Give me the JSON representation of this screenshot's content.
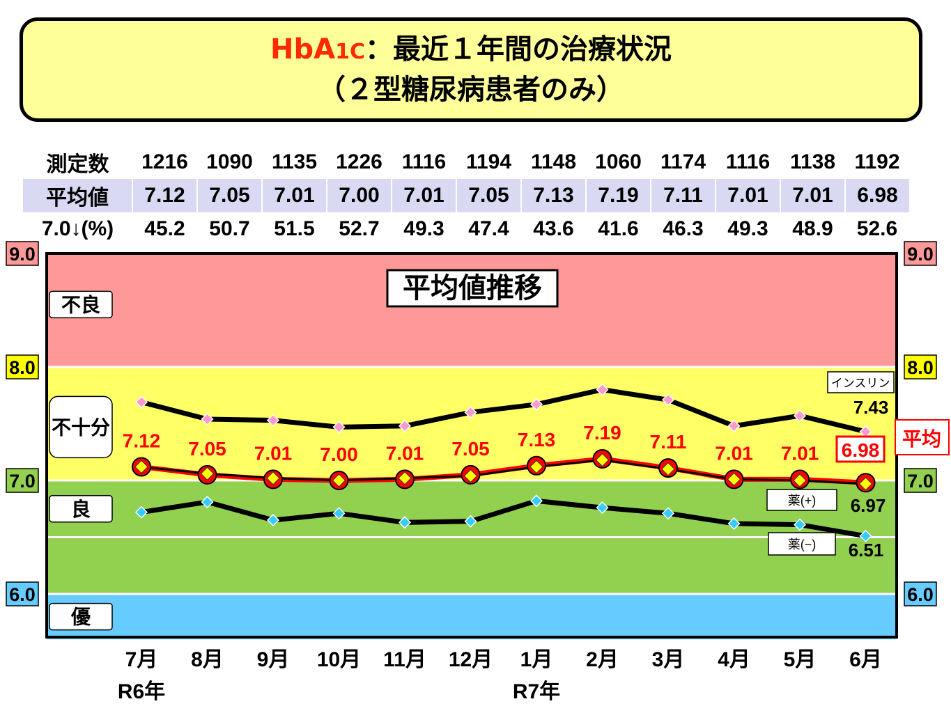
{
  "title": {
    "hba": "HbA",
    "sub": "1C",
    "main": "：最近１年間の治療状況",
    "line2": "（２型糖尿病患者のみ）"
  },
  "stats": {
    "rows": [
      {
        "label": "測定数",
        "values": [
          "1216",
          "1090",
          "1135",
          "1226",
          "1116",
          "1194",
          "1148",
          "1060",
          "1174",
          "1116",
          "1138",
          "1192"
        ]
      },
      {
        "label": "平均値",
        "values": [
          "7.12",
          "7.05",
          "7.01",
          "7.00",
          "7.01",
          "7.05",
          "7.13",
          "7.19",
          "7.11",
          "7.01",
          "7.01",
          "6.98"
        ]
      },
      {
        "label": "7.0↓(%)",
        "values": [
          "45.2",
          "50.7",
          "51.5",
          "52.7",
          "49.3",
          "47.4",
          "43.6",
          "41.6",
          "46.3",
          "49.3",
          "48.9",
          "52.6"
        ]
      }
    ]
  },
  "chart_data": {
    "type": "line",
    "title": "平均値推移",
    "categories": [
      "7月",
      "8月",
      "9月",
      "10月",
      "11月",
      "12月",
      "1月",
      "2月",
      "3月",
      "4月",
      "5月",
      "6月"
    ],
    "year_labels": [
      {
        "index": 0,
        "label": "R6年"
      },
      {
        "index": 6,
        "label": "R7年"
      }
    ],
    "ylim": [
      5.6,
      9.0
    ],
    "y_ticks": [
      "9.0",
      "8.0",
      "7.0",
      "6.0"
    ],
    "zones": [
      {
        "label": "不良",
        "from": 8.0,
        "to": 9.0,
        "color": "#ff9999"
      },
      {
        "label": "不十分",
        "from": 7.0,
        "to": 8.0,
        "color": "#ffff66"
      },
      {
        "label": "良",
        "from": 6.0,
        "to": 7.0,
        "color": "#92d050"
      },
      {
        "label": "優",
        "from": 5.6,
        "to": 6.0,
        "color": "#66ccff"
      }
    ],
    "zone_label_values": {
      "不良": 8.55,
      "不十分": 7.47,
      "良": 6.75,
      "優": 5.8
    },
    "extra_gridline": 6.5,
    "tick_colors": {
      "9.0": "#ff9999",
      "8.0": "#ffff00",
      "7.0": "#92d050",
      "6.0": "#66ccff"
    },
    "series": [
      {
        "name": "インスリン",
        "values": [
          7.69,
          7.54,
          7.53,
          7.47,
          7.48,
          7.6,
          7.67,
          7.8,
          7.71,
          7.48,
          7.57,
          7.43
        ],
        "color": "#ff99cc",
        "end_label": "7.43"
      },
      {
        "name": "平均",
        "values": [
          7.12,
          7.05,
          7.01,
          7.0,
          7.01,
          7.05,
          7.13,
          7.19,
          7.11,
          7.01,
          7.01,
          6.98
        ],
        "color": "#ff0000",
        "marker": "#ffff00"
      },
      {
        "name": "薬(+)",
        "values": [
          7.12,
          7.06,
          7.02,
          7.0,
          7.02,
          7.04,
          7.12,
          7.18,
          7.1,
          7.01,
          7.0,
          6.97
        ],
        "end_label": "6.97"
      },
      {
        "name": "薬(−)",
        "values": [
          6.72,
          6.81,
          6.65,
          6.71,
          6.63,
          6.64,
          6.82,
          6.76,
          6.71,
          6.62,
          6.61,
          6.51
        ],
        "color": "#33ccff",
        "end_label": "6.51"
      }
    ],
    "avg_labels": [
      "7.12",
      "7.05",
      "7.01",
      "7.00",
      "7.01",
      "7.05",
      "7.13",
      "7.19",
      "7.11",
      "7.01",
      "7.01",
      "6.98"
    ]
  }
}
